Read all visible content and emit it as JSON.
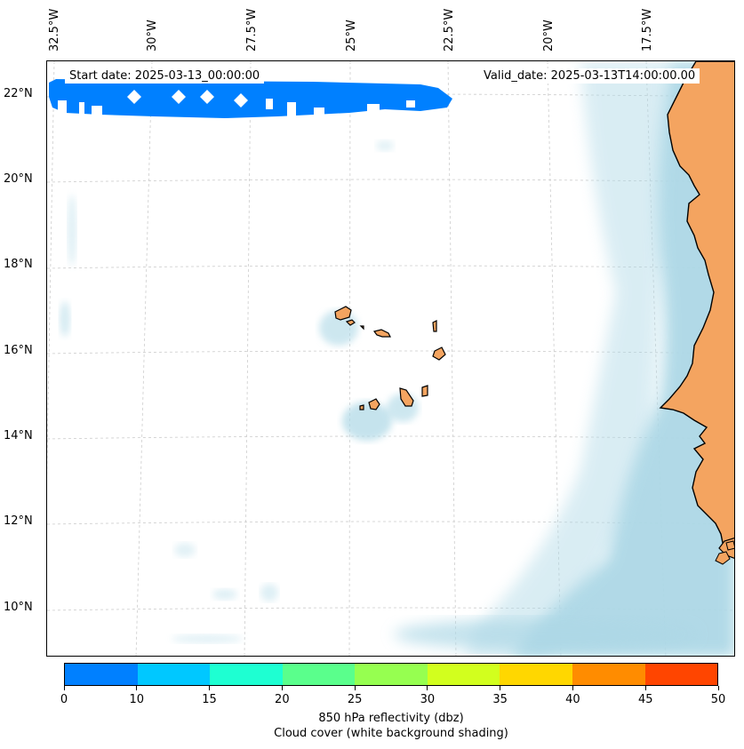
{
  "header": {
    "start_date": "Start date: 2025-03-13_00:00:00",
    "valid_date": "Valid_date: 2025-03-13T14:00:00.00"
  },
  "axes": {
    "lon_labels": [
      "32.5°W",
      "30°W",
      "27.5°W",
      "25°W",
      "22.5°W",
      "20°W",
      "17.5°W"
    ],
    "lat_labels": [
      "22°N",
      "20°N",
      "18°N",
      "16°N",
      "14°N",
      "12°N",
      "10°N"
    ]
  },
  "colorbar": {
    "ticks": [
      "0",
      "10",
      "15",
      "20",
      "25",
      "30",
      "35",
      "40",
      "45",
      "50"
    ],
    "colors": [
      "#0080ff",
      "#00c8ff",
      "#1effd2",
      "#5aff8c",
      "#96ff50",
      "#d2ff1e",
      "#ffd700",
      "#ff8c00",
      "#ff4500"
    ],
    "label_line1": "850 hPa reflectivity (dbz)",
    "label_line2": "Cloud cover (white background shading)"
  },
  "map_colors": {
    "land": "#f4a460",
    "cloud": "#add8e6",
    "reflectivity_band": "#0080ff",
    "gridline": "#cccccc"
  }
}
